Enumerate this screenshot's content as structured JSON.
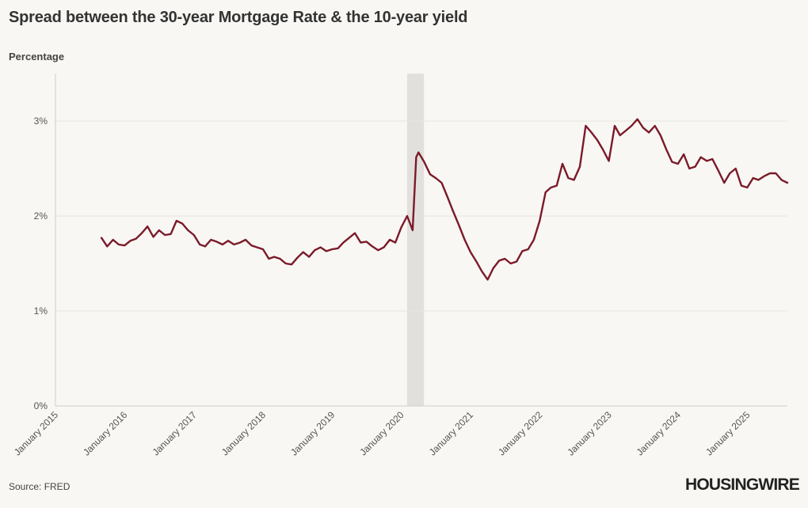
{
  "title": "Spread between the 30-year Mortgage Rate & the 10-year yield",
  "source": "Source: FRED",
  "logo": "HOUSINGWIRE",
  "colors": {
    "line": "#7b1a2a",
    "grid": "#e6e4df",
    "recession": "#e2e0dc",
    "background": "#f8f7f3"
  },
  "chart_data": {
    "type": "line",
    "title": "Spread between the 30-year Mortgage Rate & the 10-year yield",
    "ylabel": "Percentage",
    "xlabel": "",
    "ylim": [
      0,
      3.5
    ],
    "xlim": [
      "2015-01-01",
      "2025-08-01"
    ],
    "yticks": [
      0,
      1,
      2,
      3
    ],
    "ytick_labels": [
      "0%",
      "1%",
      "2%",
      "3%"
    ],
    "xticks": [
      "2015-01-01",
      "2016-01-01",
      "2017-01-01",
      "2018-01-01",
      "2019-01-01",
      "2020-01-01",
      "2021-01-01",
      "2022-01-01",
      "2023-01-01",
      "2024-01-01",
      "2025-01-01"
    ],
    "xtick_labels": [
      "January 2015",
      "January 2016",
      "January 2017",
      "January 2018",
      "January 2019",
      "January 2020",
      "January 2021",
      "January 2022",
      "January 2023",
      "January 2024",
      "January 2025"
    ],
    "grid": true,
    "shaded_regions": [
      {
        "start": "2020-02-01",
        "end": "2020-04-30"
      }
    ],
    "series": [
      {
        "x": [
          "2015-09-01",
          "2015-10-01",
          "2015-11-01",
          "2015-12-01",
          "2016-01-01",
          "2016-02-01",
          "2016-03-01",
          "2016-04-01",
          "2016-05-01",
          "2016-06-01",
          "2016-07-01",
          "2016-08-01",
          "2016-09-01",
          "2016-10-01",
          "2016-11-01",
          "2016-12-01",
          "2017-01-01",
          "2017-02-01",
          "2017-03-01",
          "2017-04-01",
          "2017-05-01",
          "2017-06-01",
          "2017-07-01",
          "2017-08-01",
          "2017-09-01",
          "2017-10-01",
          "2017-11-01",
          "2017-12-01",
          "2018-01-01",
          "2018-02-01",
          "2018-03-01",
          "2018-04-01",
          "2018-05-01",
          "2018-06-01",
          "2018-07-01",
          "2018-08-01",
          "2018-09-01",
          "2018-10-01",
          "2018-11-01",
          "2018-12-01",
          "2019-01-01",
          "2019-02-01",
          "2019-03-01",
          "2019-04-01",
          "2019-05-01",
          "2019-06-01",
          "2019-07-01",
          "2019-08-01",
          "2019-09-01",
          "2019-10-01",
          "2019-11-01",
          "2019-12-01",
          "2020-01-01",
          "2020-02-01",
          "2020-03-01",
          "2020-03-20",
          "2020-04-01",
          "2020-05-01",
          "2020-06-01",
          "2020-07-01",
          "2020-08-01",
          "2020-09-01",
          "2020-10-01",
          "2020-11-01",
          "2020-12-01",
          "2021-01-01",
          "2021-02-01",
          "2021-03-01",
          "2021-04-01",
          "2021-05-01",
          "2021-06-01",
          "2021-07-01",
          "2021-08-01",
          "2021-09-01",
          "2021-10-01",
          "2021-11-01",
          "2021-12-01",
          "2022-01-01",
          "2022-02-01",
          "2022-03-01",
          "2022-04-01",
          "2022-05-01",
          "2022-06-01",
          "2022-07-01",
          "2022-08-01",
          "2022-09-01",
          "2022-10-01",
          "2022-11-01",
          "2022-12-01",
          "2023-01-01",
          "2023-02-01",
          "2023-03-01",
          "2023-04-01",
          "2023-05-01",
          "2023-06-01",
          "2023-07-01",
          "2023-08-01",
          "2023-09-01",
          "2023-10-01",
          "2023-11-01",
          "2023-12-01",
          "2024-01-01",
          "2024-02-01",
          "2024-03-01",
          "2024-04-01",
          "2024-05-01",
          "2024-06-01",
          "2024-07-01",
          "2024-08-01",
          "2024-09-01",
          "2024-10-01",
          "2024-11-01",
          "2024-12-01",
          "2025-01-01",
          "2025-02-01",
          "2025-03-01",
          "2025-04-01",
          "2025-05-01",
          "2025-06-01",
          "2025-07-01",
          "2025-08-01"
        ],
        "values": [
          1.77,
          1.68,
          1.75,
          1.7,
          1.69,
          1.74,
          1.76,
          1.82,
          1.89,
          1.78,
          1.85,
          1.8,
          1.81,
          1.95,
          1.92,
          1.85,
          1.8,
          1.7,
          1.68,
          1.75,
          1.73,
          1.7,
          1.74,
          1.7,
          1.72,
          1.75,
          1.69,
          1.67,
          1.65,
          1.55,
          1.57,
          1.55,
          1.5,
          1.49,
          1.56,
          1.62,
          1.57,
          1.64,
          1.67,
          1.63,
          1.65,
          1.66,
          1.72,
          1.77,
          1.82,
          1.72,
          1.73,
          1.68,
          1.64,
          1.67,
          1.75,
          1.72,
          1.88,
          2.0,
          1.85,
          2.62,
          2.67,
          2.57,
          2.44,
          2.4,
          2.35,
          2.2,
          2.05,
          1.9,
          1.75,
          1.62,
          1.52,
          1.42,
          1.33,
          1.45,
          1.53,
          1.55,
          1.5,
          1.52,
          1.63,
          1.65,
          1.75,
          1.95,
          2.25,
          2.3,
          2.32,
          2.55,
          2.4,
          2.38,
          2.52,
          2.95,
          2.88,
          2.8,
          2.7,
          2.58,
          2.95,
          2.85,
          2.9,
          2.95,
          3.02,
          2.93,
          2.88,
          2.95,
          2.85,
          2.7,
          2.57,
          2.55,
          2.65,
          2.5,
          2.52,
          2.62,
          2.58,
          2.6,
          2.48,
          2.35,
          2.45,
          2.5,
          2.32,
          2.3,
          2.4,
          2.38,
          2.42,
          2.45,
          2.45,
          2.38,
          2.35
        ]
      }
    ]
  }
}
